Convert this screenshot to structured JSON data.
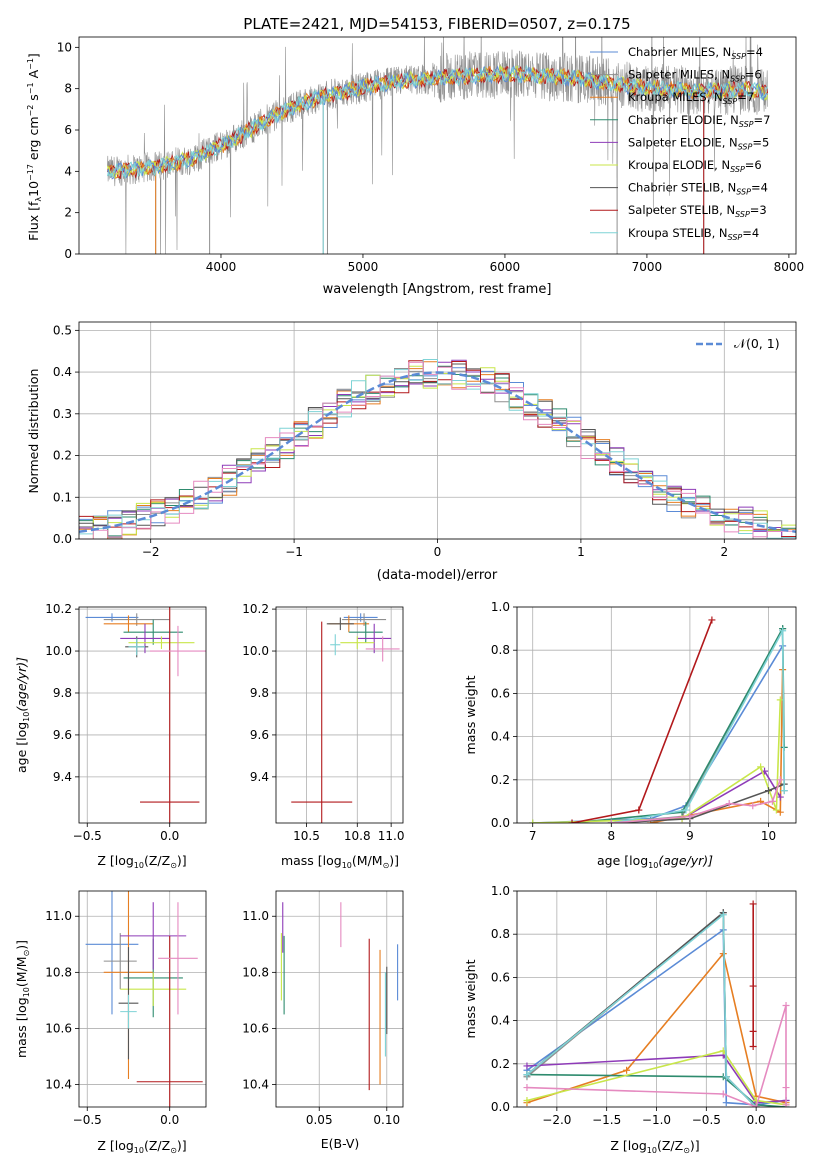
{
  "figure": {
    "title": "PLATE=2421, MJD=54153, FIBERID=0507, z=0.175"
  },
  "colors": {
    "Chabrier MILES": "#5b8bd6",
    "Salpeter MILES": "#8f8f8f",
    "Kroupa MILES": "#e67e22",
    "Chabrier ELODIE": "#2e8b6e",
    "Salpeter ELODIE": "#8e3bb8",
    "Kroupa ELODIE": "#c8e64a",
    "Chabrier STELIB": "#555555",
    "Salpeter STELIB": "#b2191c",
    "Kroupa STELIB": "#7fd3d6",
    "pink": "#e58ac0",
    "gauss": "#5b8bd6"
  },
  "chart_data": [
    {
      "id": "spectrum",
      "type": "line",
      "title": "PLATE=2421, MJD=54153, FIBERID=0507, z=0.175",
      "xlabel": "wavelength [Angstrom, rest frame]",
      "ylabel_parts": [
        "Flux [f",
        "λ",
        "10",
        "−17",
        " erg cm",
        "−2",
        " s",
        "−1",
        " A",
        "−1",
        "]"
      ],
      "xlim": [
        3000,
        8050
      ],
      "ylim": [
        0,
        10.5
      ],
      "xticks": [
        4000,
        5000,
        6000,
        7000,
        8000
      ],
      "yticks": [
        0,
        2,
        4,
        6,
        8,
        10
      ],
      "grid": false,
      "legend_position": "right",
      "legend": [
        {
          "name": "Chabrier MILES",
          "n": "4",
          "color": "#5b8bd6"
        },
        {
          "name": "Salpeter MILES",
          "n": "6",
          "color": "#8f8f8f"
        },
        {
          "name": "Kroupa MILES",
          "n": "7",
          "color": "#e67e22"
        },
        {
          "name": "Chabrier ELODIE",
          "n": "7",
          "color": "#2e8b6e"
        },
        {
          "name": "Salpeter ELODIE",
          "n": "5",
          "color": "#8e3bb8"
        },
        {
          "name": "Kroupa ELODIE",
          "n": "6",
          "color": "#c8e64a"
        },
        {
          "name": "Chabrier STELIB",
          "n": "4",
          "color": "#555555"
        },
        {
          "name": "Salpeter STELIB",
          "n": "3",
          "color": "#b2191c"
        },
        {
          "name": "Kroupa STELIB",
          "n": "4",
          "color": "#7fd3d6"
        }
      ],
      "continuum": {
        "x": [
          3200,
          3400,
          3600,
          3800,
          3950,
          4100,
          4300,
          4500,
          4700,
          4900,
          5100,
          5300,
          5500,
          5700,
          5900,
          6100,
          6300,
          6500,
          6700,
          6900,
          7100,
          7300,
          7500,
          7700,
          7850
        ],
        "y": [
          4.0,
          4.1,
          4.3,
          4.6,
          5.1,
          5.6,
          6.4,
          7.1,
          7.6,
          7.9,
          8.2,
          8.4,
          8.5,
          8.6,
          8.7,
          8.7,
          8.6,
          8.5,
          8.3,
          8.1,
          8.0,
          7.9,
          7.9,
          7.95,
          7.8
        ]
      },
      "dips": [
        {
          "x": 3540,
          "y": 0
        },
        {
          "x": 3920,
          "y": 0
        },
        {
          "x": 4720,
          "y": 0
        },
        {
          "x": 4750,
          "y": 0
        },
        {
          "x": 6790,
          "y": 0
        },
        {
          "x": 7400,
          "y": 0
        }
      ]
    },
    {
      "id": "residuals",
      "type": "histogram",
      "xlabel": "(data-model)/error",
      "ylabel": "Normed distribution",
      "xlim": [
        -2.5,
        2.5
      ],
      "ylim": [
        0,
        0.52
      ],
      "xticks": [
        -2,
        -1,
        0,
        1,
        2
      ],
      "xticklabels": [
        "−2",
        "−1",
        "0",
        "1",
        "2"
      ],
      "yticks": [
        0.0,
        0.1,
        0.2,
        0.3,
        0.4,
        0.5
      ],
      "yticklabels": [
        "0.0",
        "0.1",
        "0.2",
        "0.3",
        "0.4",
        "0.5"
      ],
      "grid": true,
      "bin_width": 0.1,
      "legend_position": "top-right",
      "gauss_label": "𝒩(0, 1)"
    },
    {
      "id": "age_vs_Z",
      "type": "errorbar",
      "xlabel_parts": [
        "Z [log",
        "10",
        "(Z/Z",
        "⊙",
        ")]"
      ],
      "ylabel_parts": [
        "age  [log",
        "10",
        "(age/yr)]"
      ],
      "xlim": [
        -0.55,
        0.22
      ],
      "ylim": [
        9.18,
        10.21
      ],
      "xticks": [
        -0.5,
        0.0
      ],
      "xticklabels": [
        "−0.5",
        "0.0"
      ],
      "yticks": [
        9.4,
        9.6,
        9.8,
        10.0,
        10.2
      ],
      "yticklabels": [
        "9.4",
        "9.6",
        "9.8",
        "10.0",
        "10.2"
      ],
      "grid": true,
      "points": [
        {
          "x": -0.35,
          "xerr": 0.16,
          "y": 10.16,
          "yerr": 0.02,
          "color": "#5b8bd6"
        },
        {
          "x": -0.2,
          "xerr": 0.2,
          "y": 10.15,
          "yerr": 0.03,
          "color": "#8f8f8f"
        },
        {
          "x": -0.25,
          "xerr": 0.15,
          "y": 10.13,
          "yerr": 0.04,
          "color": "#e67e22"
        },
        {
          "x": -0.1,
          "xerr": 0.18,
          "y": 10.09,
          "yerr": 0.06,
          "color": "#2e8b6e"
        },
        {
          "x": -0.15,
          "xerr": 0.15,
          "y": 10.06,
          "yerr": 0.07,
          "color": "#8e3bb8"
        },
        {
          "x": -0.05,
          "xerr": 0.2,
          "y": 10.04,
          "yerr": 0.03,
          "color": "#c8e64a"
        },
        {
          "x": -0.2,
          "xerr": 0.07,
          "y": 10.02,
          "yerr": 0.05,
          "color": "#555555"
        },
        {
          "x": 0.0,
          "xerr": 0.18,
          "y": 9.28,
          "yerr": 0.93,
          "color": "#b2191c"
        },
        {
          "x": -0.2,
          "xerr": 0.05,
          "y": 10.02,
          "yerr": 0.04,
          "color": "#7fd3d6"
        },
        {
          "x": 0.05,
          "xerr": 0.17,
          "y": 10.0,
          "yerr": 0.12,
          "color": "#e58ac0"
        }
      ]
    },
    {
      "id": "age_vs_mass",
      "type": "errorbar",
      "xlabel_parts": [
        "mass [log",
        "10",
        "(M/M",
        "⊙",
        ")]"
      ],
      "xlim": [
        10.32,
        11.07
      ],
      "ylim": [
        9.18,
        10.21
      ],
      "xticks": [
        10.5,
        10.8,
        11.0
      ],
      "xticklabels": [
        "10.5",
        "10.8",
        "11.0"
      ],
      "yticks": [
        9.4,
        9.6,
        9.8,
        10.0,
        10.2
      ],
      "yticklabels": [
        "9.4",
        "9.6",
        "9.8",
        "10.0",
        "10.2"
      ],
      "grid": true,
      "points": [
        {
          "x": 10.82,
          "xerr": 0.1,
          "y": 10.16,
          "yerr": 0.02,
          "color": "#5b8bd6"
        },
        {
          "x": 10.84,
          "xerr": 0.13,
          "y": 10.15,
          "yerr": 0.03,
          "color": "#8f8f8f"
        },
        {
          "x": 10.75,
          "xerr": 0.12,
          "y": 10.13,
          "yerr": 0.04,
          "color": "#e67e22"
        },
        {
          "x": 10.85,
          "xerr": 0.1,
          "y": 10.09,
          "yerr": 0.05,
          "color": "#2e8b6e"
        },
        {
          "x": 10.9,
          "xerr": 0.1,
          "y": 10.06,
          "yerr": 0.07,
          "color": "#8e3bb8"
        },
        {
          "x": 10.8,
          "xerr": 0.1,
          "y": 10.04,
          "yerr": 0.03,
          "color": "#c8e64a"
        },
        {
          "x": 10.7,
          "xerr": 0.08,
          "y": 10.13,
          "yerr": 0.03,
          "color": "#555555"
        },
        {
          "x": 10.59,
          "xerr": 0.18,
          "y": 9.28,
          "yerr": 0.86,
          "color": "#b2191c"
        },
        {
          "x": 10.67,
          "xerr": 0.03,
          "y": 10.03,
          "yerr": 0.05,
          "color": "#7fd3d6"
        },
        {
          "x": 10.95,
          "xerr": 0.1,
          "y": 10.01,
          "yerr": 0.06,
          "color": "#e58ac0"
        }
      ]
    },
    {
      "id": "mass_vs_Z",
      "type": "errorbar",
      "xlabel_parts": [
        "Z [log",
        "10",
        "(Z/Z",
        "⊙",
        ")]"
      ],
      "ylabel_parts": [
        "mass [log",
        "10",
        "(M/M",
        "⊙",
        ")]"
      ],
      "xlim": [
        -0.55,
        0.22
      ],
      "ylim": [
        10.32,
        11.09
      ],
      "xticks": [
        -0.5,
        0.0
      ],
      "xticklabels": [
        "−0.5",
        "0.0"
      ],
      "yticks": [
        10.4,
        10.6,
        10.8,
        11.0
      ],
      "yticklabels": [
        "10.4",
        "10.6",
        "10.8",
        "11.0"
      ],
      "grid": true,
      "points": [
        {
          "x": -0.35,
          "xerr": 0.16,
          "y": 10.9,
          "yerr": 0.25,
          "color": "#5b8bd6"
        },
        {
          "x": -0.3,
          "xerr": 0.1,
          "y": 10.84,
          "yerr": 0.1,
          "color": "#8f8f8f"
        },
        {
          "x": -0.25,
          "xerr": 0.15,
          "y": 10.8,
          "yerr": 0.38,
          "color": "#e67e22"
        },
        {
          "x": -0.1,
          "xerr": 0.18,
          "y": 10.78,
          "yerr": 0.14,
          "color": "#2e8b6e"
        },
        {
          "x": -0.1,
          "xerr": 0.2,
          "y": 10.93,
          "yerr": 0.12,
          "color": "#8e3bb8"
        },
        {
          "x": -0.1,
          "xerr": 0.2,
          "y": 10.74,
          "yerr": 0.06,
          "color": "#c8e64a"
        },
        {
          "x": -0.25,
          "xerr": 0.06,
          "y": 10.69,
          "yerr": 0.2,
          "color": "#555555"
        },
        {
          "x": 0.0,
          "xerr": 0.2,
          "y": 10.41,
          "yerr": 0.52,
          "color": "#b2191c"
        },
        {
          "x": -0.25,
          "xerr": 0.05,
          "y": 10.66,
          "yerr": 0.06,
          "color": "#7fd3d6"
        },
        {
          "x": 0.05,
          "xerr": 0.12,
          "y": 10.85,
          "yerr": 0.2,
          "color": "#e58ac0"
        }
      ]
    },
    {
      "id": "mass_vs_ebv",
      "type": "errorbar",
      "xlabel": "E(B-V)",
      "xlim": [
        0.018,
        0.112
      ],
      "ylim": [
        10.32,
        11.09
      ],
      "xticks": [
        0.05,
        0.1
      ],
      "xticklabels": [
        "0.05",
        "0.10"
      ],
      "yticks": [
        10.4,
        10.6,
        10.8,
        11.0
      ],
      "yticklabels": [
        "10.4",
        "10.6",
        "10.8",
        "11.0"
      ],
      "grid": true,
      "points": [
        {
          "x": 0.108,
          "xerr": 0,
          "y": 10.8,
          "yerr": 0.1,
          "color": "#5b8bd6"
        },
        {
          "x": 0.1,
          "xerr": 0,
          "y": 10.7,
          "yerr": 0.1,
          "color": "#8f8f8f"
        },
        {
          "x": 0.095,
          "xerr": 0,
          "y": 10.64,
          "yerr": 0.24,
          "color": "#e67e22"
        },
        {
          "x": 0.024,
          "xerr": 0,
          "y": 10.79,
          "yerr": 0.14,
          "color": "#2e8b6e"
        },
        {
          "x": 0.023,
          "xerr": 0,
          "y": 10.96,
          "yerr": 0.09,
          "color": "#8e3bb8"
        },
        {
          "x": 0.022,
          "xerr": 0,
          "y": 10.82,
          "yerr": 0.12,
          "color": "#c8e64a"
        },
        {
          "x": 0.1,
          "xerr": 0,
          "y": 10.7,
          "yerr": 0.12,
          "color": "#555555"
        },
        {
          "x": 0.087,
          "xerr": 0,
          "y": 10.65,
          "yerr": 0.27,
          "color": "#b2191c"
        },
        {
          "x": 0.099,
          "xerr": 0,
          "y": 10.65,
          "yerr": 0.15,
          "color": "#7fd3d6"
        },
        {
          "x": 0.066,
          "xerr": 0,
          "y": 10.97,
          "yerr": 0.08,
          "color": "#e58ac0"
        }
      ]
    },
    {
      "id": "weight_vs_age",
      "type": "line",
      "xlabel_parts": [
        "age  [log",
        "10",
        "(age/yr)]"
      ],
      "ylabel": "mass weight",
      "xlim": [
        6.8,
        10.35
      ],
      "ylim": [
        0,
        1.0
      ],
      "xticks": [
        7,
        8,
        9,
        10
      ],
      "xticklabels": [
        "7",
        "8",
        "9",
        "10"
      ],
      "yticks": [
        0.0,
        0.2,
        0.4,
        0.6,
        0.8,
        1.0
      ],
      "yticklabels": [
        "0.0",
        "0.2",
        "0.4",
        "0.6",
        "0.8",
        "1.0"
      ],
      "grid": true,
      "series": [
        {
          "color": "#5b8bd6",
          "x": [
            7.0,
            8.5,
            8.95,
            10.18
          ],
          "y": [
            0.0,
            0.02,
            0.08,
            0.82
          ]
        },
        {
          "color": "#8f8f8f",
          "x": [
            8.0,
            8.9,
            10.18,
            10.2
          ],
          "y": [
            0.0,
            0.03,
            0.9,
            0.15
          ]
        },
        {
          "color": "#e67e22",
          "x": [
            8.5,
            9.9,
            10.15,
            10.18
          ],
          "y": [
            0.0,
            0.1,
            0.05,
            0.71
          ]
        },
        {
          "color": "#2e8b6e",
          "x": [
            7.5,
            8.9,
            10.18,
            10.2
          ],
          "y": [
            0.0,
            0.05,
            0.9,
            0.35
          ]
        },
        {
          "color": "#8e3bb8",
          "x": [
            8.0,
            8.9,
            9.95,
            10.15
          ],
          "y": [
            0.0,
            0.02,
            0.24,
            0.12
          ]
        },
        {
          "color": "#c8e64a",
          "x": [
            7.0,
            8.9,
            9.9,
            10.1,
            10.15
          ],
          "y": [
            0.0,
            0.02,
            0.26,
            0.06,
            0.57
          ]
        },
        {
          "color": "#555555",
          "x": [
            8.0,
            9.0,
            10.0,
            10.2
          ],
          "y": [
            0.0,
            0.02,
            0.15,
            0.18
          ]
        },
        {
          "color": "#b2191c",
          "x": [
            7.5,
            8.35,
            9.28
          ],
          "y": [
            0.0,
            0.06,
            0.94
          ]
        },
        {
          "color": "#7fd3d6",
          "x": [
            8.0,
            8.95,
            10.18,
            10.2
          ],
          "y": [
            0.0,
            0.06,
            0.89,
            0.15
          ]
        },
        {
          "color": "#e58ac0",
          "x": [
            8.0,
            9.0,
            9.5,
            9.8,
            10.05,
            10.15
          ],
          "y": [
            0.0,
            0.03,
            0.09,
            0.08,
            0.1,
            0.2
          ]
        }
      ]
    },
    {
      "id": "weight_vs_Z",
      "type": "line",
      "xlabel_parts": [
        "Z [log",
        "10",
        "(Z/Z",
        "⊙",
        ")]"
      ],
      "ylabel": "mass weight",
      "xlim": [
        -2.4,
        0.4
      ],
      "ylim": [
        0,
        1.0
      ],
      "xticks": [
        -2.0,
        -1.5,
        -1.0,
        -0.5,
        0.0
      ],
      "xticklabels": [
        "−2.0",
        "−1.5",
        "−1.0",
        "−0.5",
        "0.0"
      ],
      "yticks": [
        0.0,
        0.2,
        0.4,
        0.6,
        0.8,
        1.0
      ],
      "yticklabels": [
        "0.0",
        "0.2",
        "0.4",
        "0.6",
        "0.8",
        "1.0"
      ],
      "grid": true,
      "series": [
        {
          "color": "#5b8bd6",
          "x": [
            -2.3,
            -0.33,
            -0.3,
            0.0,
            0.3
          ],
          "y": [
            0.17,
            0.82,
            0.02,
            0.01,
            0.03
          ]
        },
        {
          "color": "#8f8f8f",
          "x": [
            -2.3,
            -0.33,
            -0.3,
            0.0
          ],
          "y": [
            0.14,
            0.9,
            0.14,
            0.0
          ]
        },
        {
          "color": "#e67e22",
          "x": [
            -2.3,
            -1.3,
            -0.33,
            0.0,
            0.3
          ],
          "y": [
            0.02,
            0.17,
            0.71,
            0.05,
            0.02
          ]
        },
        {
          "color": "#2e8b6e",
          "x": [
            -2.3,
            -0.33,
            0.0,
            0.3
          ],
          "y": [
            0.15,
            0.14,
            0.01,
            0.0
          ]
        },
        {
          "color": "#8e3bb8",
          "x": [
            -2.3,
            -0.33,
            0.0,
            0.3
          ],
          "y": [
            0.19,
            0.24,
            0.02,
            0.03
          ]
        },
        {
          "color": "#c8e64a",
          "x": [
            -2.3,
            -0.33,
            0.0,
            0.3
          ],
          "y": [
            0.03,
            0.26,
            0.03,
            0.01
          ]
        },
        {
          "color": "#555555",
          "x": [
            -2.3,
            -0.33,
            -0.3,
            0.0
          ],
          "y": [
            0.15,
            0.9,
            0.14,
            0.0
          ]
        },
        {
          "color": "#b2191c",
          "x": [
            -0.03,
            -0.03,
            -0.03,
            -0.03
          ],
          "y": [
            0.94,
            0.56,
            0.35,
            0.28
          ]
        },
        {
          "color": "#7fd3d6",
          "x": [
            -2.3,
            -0.33,
            -0.3,
            0.0
          ],
          "y": [
            0.15,
            0.89,
            0.14,
            0.0
          ]
        },
        {
          "color": "#e58ac0",
          "x": [
            -2.3,
            -0.33,
            0.0,
            0.3,
            0.3,
            0.3
          ],
          "y": [
            0.09,
            0.06,
            0.0,
            0.47,
            0.09,
            0.01
          ]
        }
      ]
    }
  ]
}
